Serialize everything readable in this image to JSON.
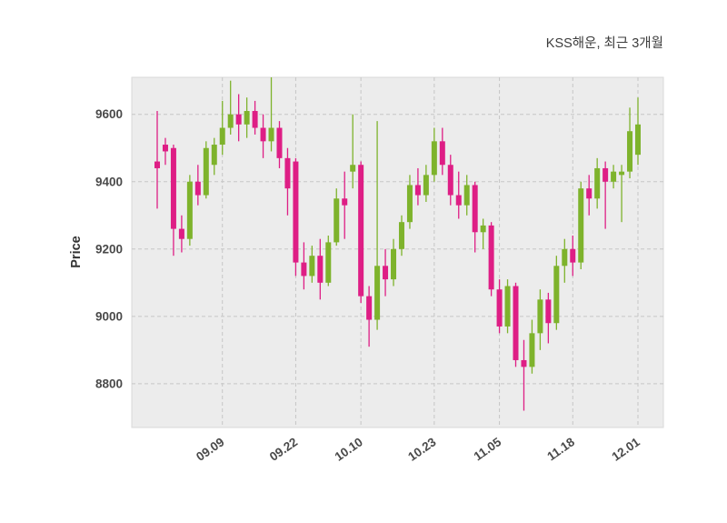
{
  "chart_data": {
    "type": "candlestick",
    "title": "KSS해운, 최근 3개월",
    "xlabel": "",
    "ylabel": "Price",
    "ylim": [
      8670,
      9710
    ],
    "yticks": [
      8800,
      9000,
      9200,
      9400,
      9600
    ],
    "xticks": [
      {
        "index": 8,
        "label": "09.09"
      },
      {
        "index": 17,
        "label": "09.22"
      },
      {
        "index": 25,
        "label": "10.10"
      },
      {
        "index": 34,
        "label": "10.23"
      },
      {
        "index": 42,
        "label": "11.05"
      },
      {
        "index": 51,
        "label": "11.18"
      },
      {
        "index": 59,
        "label": "12.01"
      }
    ],
    "grid": true,
    "legend": "none",
    "up_color": "#7eb32c",
    "down_color": "#de1e85",
    "plot_bg": "#ececec",
    "grid_color": "#c6c6c6",
    "tick_color": "#4a4a4a",
    "title_color": "#3c3c3c",
    "candles": [
      [
        9460,
        9610,
        9320,
        9440
      ],
      [
        9510,
        9530,
        9450,
        9490
      ],
      [
        9500,
        9510,
        9180,
        9260
      ],
      [
        9260,
        9300,
        9190,
        9230
      ],
      [
        9230,
        9420,
        9210,
        9400
      ],
      [
        9400,
        9450,
        9330,
        9360
      ],
      [
        9360,
        9520,
        9350,
        9500
      ],
      [
        9450,
        9530,
        9420,
        9510
      ],
      [
        9510,
        9640,
        9480,
        9560
      ],
      [
        9560,
        9700,
        9540,
        9600
      ],
      [
        9600,
        9660,
        9520,
        9570
      ],
      [
        9570,
        9650,
        9530,
        9610
      ],
      [
        9610,
        9640,
        9540,
        9560
      ],
      [
        9560,
        9600,
        9470,
        9520
      ],
      [
        9520,
        9710,
        9490,
        9560
      ],
      [
        9560,
        9580,
        9440,
        9470
      ],
      [
        9470,
        9500,
        9300,
        9380
      ],
      [
        9460,
        9470,
        9120,
        9160
      ],
      [
        9160,
        9220,
        9080,
        9120
      ],
      [
        9120,
        9210,
        9100,
        9180
      ],
      [
        9180,
        9230,
        9050,
        9100
      ],
      [
        9100,
        9240,
        9090,
        9220
      ],
      [
        9220,
        9380,
        9210,
        9350
      ],
      [
        9350,
        9430,
        9230,
        9330
      ],
      [
        9430,
        9600,
        9380,
        9450
      ],
      [
        9450,
        9460,
        9040,
        9060
      ],
      [
        9060,
        9090,
        8910,
        8990
      ],
      [
        8990,
        9580,
        8960,
        9150
      ],
      [
        9150,
        9200,
        9060,
        9110
      ],
      [
        9110,
        9230,
        9090,
        9200
      ],
      [
        9200,
        9300,
        9180,
        9280
      ],
      [
        9280,
        9420,
        9260,
        9390
      ],
      [
        9390,
        9440,
        9330,
        9360
      ],
      [
        9360,
        9450,
        9340,
        9420
      ],
      [
        9420,
        9560,
        9400,
        9520
      ],
      [
        9520,
        9560,
        9420,
        9450
      ],
      [
        9450,
        9480,
        9330,
        9360
      ],
      [
        9360,
        9430,
        9290,
        9330
      ],
      [
        9330,
        9420,
        9300,
        9390
      ],
      [
        9390,
        9400,
        9190,
        9250
      ],
      [
        9250,
        9290,
        9200,
        9270
      ],
      [
        9270,
        9280,
        9060,
        9080
      ],
      [
        9080,
        9110,
        8950,
        8970
      ],
      [
        8970,
        9110,
        8950,
        9090
      ],
      [
        9090,
        9100,
        8850,
        8870
      ],
      [
        8870,
        8930,
        8720,
        8850
      ],
      [
        8850,
        8990,
        8830,
        8950
      ],
      [
        8950,
        9080,
        8900,
        9050
      ],
      [
        9050,
        9070,
        8920,
        8980
      ],
      [
        8980,
        9180,
        8960,
        9150
      ],
      [
        9150,
        9230,
        9100,
        9200
      ],
      [
        9200,
        9240,
        9120,
        9160
      ],
      [
        9160,
        9400,
        9140,
        9380
      ],
      [
        9380,
        9420,
        9300,
        9350
      ],
      [
        9350,
        9470,
        9320,
        9440
      ],
      [
        9440,
        9460,
        9260,
        9400
      ],
      [
        9400,
        9450,
        9380,
        9430
      ],
      [
        9420,
        9450,
        9280,
        9430
      ],
      [
        9430,
        9620,
        9410,
        9550
      ],
      [
        9480,
        9650,
        9450,
        9570
      ]
    ]
  }
}
